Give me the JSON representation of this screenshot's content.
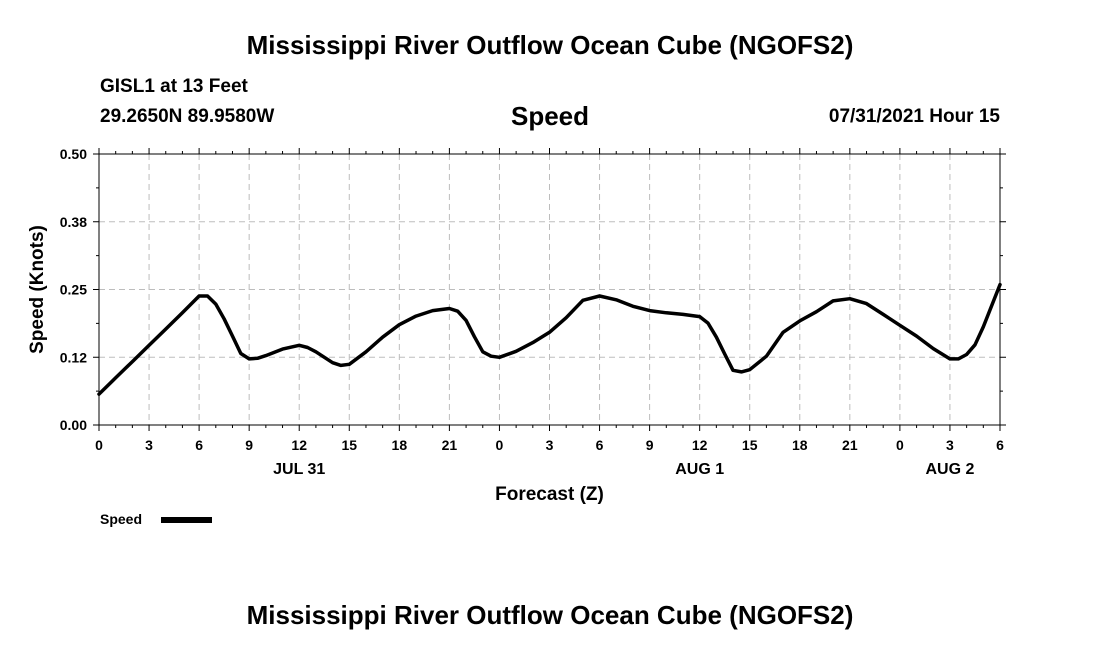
{
  "header": {
    "title": "Mississippi River Outflow Ocean Cube (NGOFS2)",
    "station": "GISL1 at 13 Feet",
    "coords": "29.2650N  89.9580W",
    "datetime": "07/31/2021 Hour 15",
    "footer_title": "Mississippi River Outflow Ocean Cube (NGOFS2)"
  },
  "chart_data": {
    "type": "line",
    "title": "Speed",
    "xlabel": "Forecast (Z)",
    "ylabel": "Speed (Knots)",
    "ylim": [
      0,
      0.5
    ],
    "xlim": [
      0,
      54
    ],
    "grid": true,
    "yticks": [
      0.0,
      0.125,
      0.25,
      0.375,
      0.5
    ],
    "ytick_labels": [
      "0.00",
      "0.12",
      "0.25",
      "0.38",
      "0.50"
    ],
    "xticks": [
      0,
      3,
      6,
      9,
      12,
      15,
      18,
      21,
      24,
      27,
      30,
      33,
      36,
      39,
      42,
      45,
      48,
      51,
      54
    ],
    "xtick_labels": [
      "0",
      "3",
      "6",
      "9",
      "12",
      "15",
      "18",
      "21",
      "0",
      "3",
      "6",
      "9",
      "12",
      "15",
      "18",
      "21",
      "0",
      "3",
      "6"
    ],
    "day_labels": [
      {
        "x": 12,
        "label": "JUL 31"
      },
      {
        "x": 36,
        "label": "AUG 1"
      },
      {
        "x": 51,
        "label": "AUG 2"
      }
    ],
    "legend": {
      "label": "Speed",
      "position": "bottom-left"
    },
    "series": [
      {
        "name": "Speed",
        "color": "#000000",
        "x": [
          0,
          1,
          2,
          3,
          4,
          5,
          6,
          6.5,
          7,
          7.5,
          8,
          8.5,
          9,
          9.5,
          10,
          11,
          12,
          12.5,
          13,
          14,
          14.5,
          15,
          16,
          17,
          18,
          19,
          20,
          21,
          21.5,
          22,
          22.5,
          23,
          23.5,
          24,
          25,
          26,
          27,
          28,
          29,
          30,
          31,
          32,
          33,
          34,
          35,
          36,
          36.5,
          37,
          37.5,
          38,
          38.5,
          39,
          40,
          41,
          42,
          43,
          44,
          45,
          46,
          47,
          48,
          49,
          50,
          51,
          51.5,
          52,
          52.5,
          53,
          54
        ],
        "values": [
          0.057,
          0.087,
          0.117,
          0.147,
          0.177,
          0.207,
          0.238,
          0.238,
          0.223,
          0.196,
          0.164,
          0.132,
          0.122,
          0.123,
          0.128,
          0.14,
          0.147,
          0.143,
          0.135,
          0.115,
          0.11,
          0.112,
          0.135,
          0.162,
          0.185,
          0.201,
          0.211,
          0.215,
          0.21,
          0.193,
          0.163,
          0.135,
          0.127,
          0.125,
          0.136,
          0.152,
          0.171,
          0.198,
          0.23,
          0.238,
          0.231,
          0.219,
          0.211,
          0.207,
          0.204,
          0.2,
          0.188,
          0.162,
          0.131,
          0.101,
          0.098,
          0.102,
          0.127,
          0.171,
          0.192,
          0.209,
          0.229,
          0.233,
          0.224,
          0.204,
          0.184,
          0.164,
          0.141,
          0.122,
          0.122,
          0.13,
          0.148,
          0.181,
          0.259
        ]
      }
    ]
  }
}
